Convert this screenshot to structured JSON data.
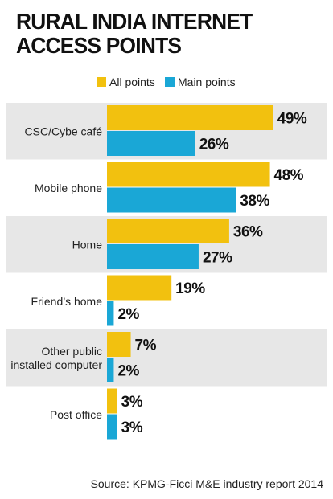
{
  "title_lines": [
    "RURAL INDIA INTERNET",
    "ACCESS POINTS"
  ],
  "source": "Source: KPMG-Ficci M&E industry report 2014",
  "colors": {
    "all_points": "#f2c10f",
    "main_points": "#1aa7d6",
    "band": "#e7e7e7",
    "text": "#222222"
  },
  "chart_data": {
    "type": "bar",
    "orientation": "horizontal",
    "categories": [
      [
        "CSC/Cybe café"
      ],
      [
        "Mobile phone"
      ],
      [
        "Home"
      ],
      [
        "Friend’s home"
      ],
      [
        "Other public",
        "installed computer"
      ],
      [
        "Post office"
      ]
    ],
    "series": [
      {
        "name": "All points",
        "values": [
          49,
          48,
          36,
          19,
          7,
          3
        ]
      },
      {
        "name": "Main points",
        "values": [
          26,
          38,
          27,
          2,
          2,
          3
        ]
      }
    ],
    "value_suffix": "%",
    "xlim": [
      0,
      100
    ],
    "legend_position": "top",
    "grid": false
  }
}
